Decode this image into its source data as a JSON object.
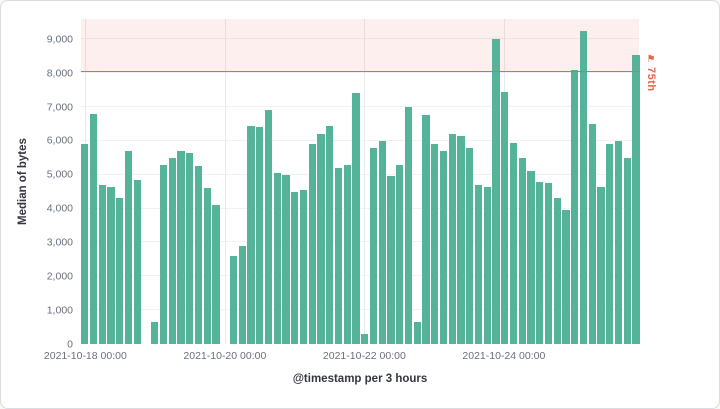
{
  "chart_data": {
    "type": "bar",
    "title": "",
    "ylabel": "Median of bytes",
    "xlabel": "@timestamp per 3 hours",
    "ylim": [
      0,
      9600
    ],
    "grid": true,
    "legend": "none",
    "bar_color": "#54b399",
    "y_ticks": [
      {
        "value": 0,
        "label": "0"
      },
      {
        "value": 1000,
        "label": "1,000"
      },
      {
        "value": 2000,
        "label": "2,000"
      },
      {
        "value": 3000,
        "label": "3,000"
      },
      {
        "value": 4000,
        "label": "4,000"
      },
      {
        "value": 5000,
        "label": "5,000"
      },
      {
        "value": 6000,
        "label": "6,000"
      },
      {
        "value": 7000,
        "label": "7,000"
      },
      {
        "value": 8000,
        "label": "8,000"
      },
      {
        "value": 9000,
        "label": "9,000"
      }
    ],
    "x_ticks": [
      {
        "slot": 0,
        "label": "2021-10-18 00:00"
      },
      {
        "slot": 16,
        "label": "2021-10-20 00:00"
      },
      {
        "slot": 32,
        "label": "2021-10-22 00:00"
      },
      {
        "slot": 48,
        "label": "2021-10-24 00:00"
      }
    ],
    "bucket_interval": "3 hours",
    "values": [
      5900,
      6800,
      4700,
      4650,
      4300,
      5700,
      4850,
      null,
      650,
      5300,
      5500,
      5700,
      5650,
      5250,
      4600,
      4100,
      null,
      2600,
      2900,
      6450,
      6400,
      6900,
      5050,
      5000,
      4500,
      4550,
      5900,
      6200,
      6450,
      5200,
      5300,
      7400,
      300,
      5800,
      6000,
      4950,
      5300,
      7000,
      650,
      6750,
      5900,
      5700,
      6200,
      6150,
      5800,
      4700,
      4650,
      9000,
      7450,
      5950,
      5500,
      5100,
      4800,
      4750,
      4300,
      3950,
      8100,
      9250,
      6500,
      4650,
      5900,
      6000,
      5500,
      8550
    ],
    "threshold": {
      "value": 8070,
      "label": "75th",
      "color": "#e7664c",
      "fill_above": true
    }
  }
}
